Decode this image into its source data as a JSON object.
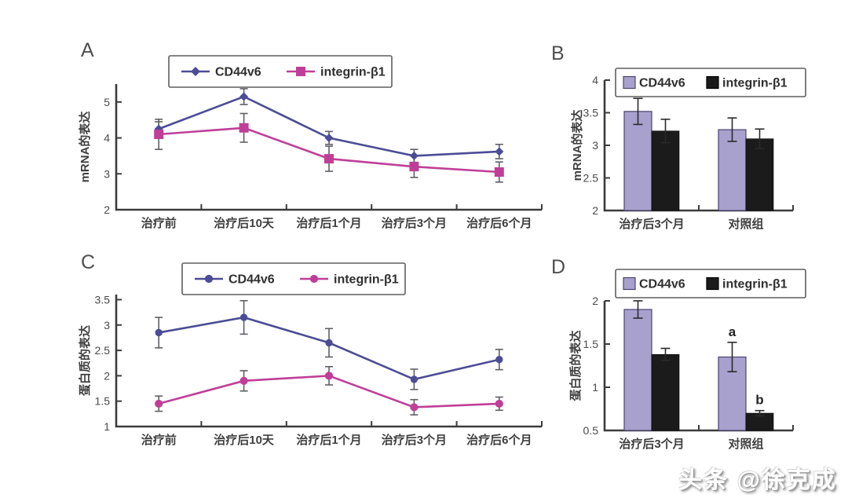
{
  "watermark": {
    "text": "头条 @徐克成"
  },
  "panels": [
    {
      "label": "A"
    },
    {
      "label": "B"
    },
    {
      "label": "C"
    },
    {
      "label": "D"
    }
  ],
  "colors": {
    "cd44v6_line": "#4c4c96",
    "integrin_line": "#bf3f98",
    "cd44v6_bar": "#a8a0cd",
    "cd44v6_bar_border": "#4a4570",
    "integrin_bar": "#1b1b1b",
    "axis": "#3c3c3c",
    "error_bar_line": "#5f5f66",
    "error_bar_bar": "#2a2a2a"
  },
  "chart_data": [
    {
      "id": "A",
      "type": "line",
      "ylabel": "mRNA的表达",
      "ylim": [
        2,
        5.5
      ],
      "yticks": [
        2,
        3,
        4,
        5
      ],
      "grid": false,
      "legend_position": "top",
      "categories": [
        "治疗前",
        "治疗后10天",
        "治疗后1个月",
        "治疗后3个月",
        "治疗后6个月"
      ],
      "series": [
        {
          "name": "CD44v6",
          "color": "#4c4c96",
          "marker": "diamond",
          "values": [
            4.25,
            5.15,
            4.0,
            3.5,
            3.62
          ],
          "errors": [
            0.2,
            0.22,
            0.18,
            0.18,
            0.2
          ]
        },
        {
          "name": "integrin-β1",
          "color": "#bf3f98",
          "marker": "square",
          "values": [
            4.1,
            4.28,
            3.42,
            3.2,
            3.05
          ],
          "errors": [
            0.42,
            0.4,
            0.35,
            0.3,
            0.28
          ]
        }
      ]
    },
    {
      "id": "B",
      "type": "bar",
      "ylabel": "mRNA的表达",
      "ylim": [
        2,
        4
      ],
      "yticks": [
        2,
        2.5,
        3,
        3.5,
        4
      ],
      "grid": false,
      "legend_position": "top",
      "categories": [
        "治疗后3个月",
        "对照组"
      ],
      "series": [
        {
          "name": "CD44v6",
          "color": "#a8a0cd",
          "values": [
            3.52,
            3.24
          ],
          "errors": [
            0.2,
            0.18
          ],
          "annotations": [
            "",
            ""
          ]
        },
        {
          "name": "integrin-β1",
          "color": "#1b1b1b",
          "values": [
            3.22,
            3.1
          ],
          "errors": [
            0.18,
            0.15
          ],
          "annotations": [
            "",
            ""
          ]
        }
      ]
    },
    {
      "id": "C",
      "type": "line",
      "ylabel": "蛋白质的表达",
      "ylim": [
        1,
        3.6
      ],
      "yticks": [
        1,
        1.5,
        2,
        2.5,
        3,
        3.5
      ],
      "grid": false,
      "legend_position": "top",
      "categories": [
        "治疗前",
        "治疗后10天",
        "治疗后1个月",
        "治疗后3个月",
        "治疗后6个月"
      ],
      "series": [
        {
          "name": "CD44v6",
          "color": "#4c4c96",
          "marker": "circle",
          "values": [
            2.85,
            3.15,
            2.65,
            1.93,
            2.32
          ],
          "errors": [
            0.3,
            0.33,
            0.28,
            0.2,
            0.2
          ]
        },
        {
          "name": "integrin-β1",
          "color": "#bf3f98",
          "marker": "circle",
          "values": [
            1.45,
            1.9,
            2.0,
            1.38,
            1.45
          ],
          "errors": [
            0.15,
            0.2,
            0.18,
            0.15,
            0.13
          ]
        }
      ]
    },
    {
      "id": "D",
      "type": "bar",
      "ylabel": "蛋白质的表达",
      "ylim": [
        0.5,
        2.0
      ],
      "yticks": [
        0.5,
        1,
        1.5,
        2
      ],
      "grid": false,
      "legend_position": "top",
      "categories": [
        "治疗后3个月",
        "对照组"
      ],
      "series": [
        {
          "name": "CD44v6",
          "color": "#a8a0cd",
          "values": [
            1.9,
            1.35
          ],
          "errors": [
            0.1,
            0.17
          ],
          "annotations": [
            "",
            "a"
          ]
        },
        {
          "name": "integrin-β1",
          "color": "#1b1b1b",
          "values": [
            1.38,
            0.7
          ],
          "errors": [
            0.07,
            0.03
          ],
          "annotations": [
            "",
            "b"
          ]
        }
      ]
    }
  ]
}
